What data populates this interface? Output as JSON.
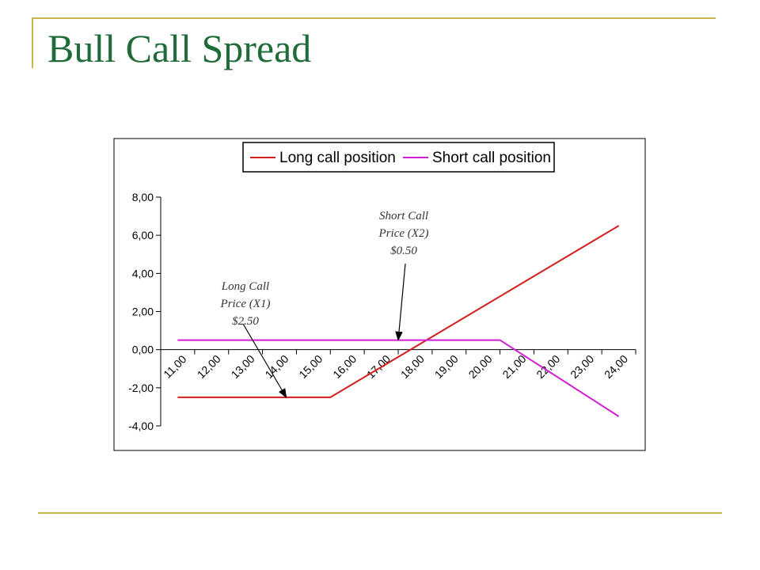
{
  "slide": {
    "title": "Bull Call Spread"
  },
  "colors": {
    "accent_line": "#c8b44a",
    "title": "#1f6b3a",
    "long": "#d41e1e",
    "short": "#d21ed2"
  },
  "chart_data": {
    "type": "line",
    "title": "",
    "xlabel": "",
    "ylabel": "",
    "x_tick_labels": [
      "11,00",
      "12,00",
      "13,00",
      "14,00",
      "15,00",
      "16,00",
      "17,00",
      "18,00",
      "19,00",
      "20,00",
      "21,00",
      "22,00",
      "23,00",
      "24,00"
    ],
    "y_tick_labels": [
      "8,00",
      "6,00",
      "4,00",
      "2,00",
      "0,00",
      "-2,00",
      "-4,00"
    ],
    "ylim": [
      -4,
      8
    ],
    "xlim": [
      10.5,
      24.5
    ],
    "grid": false,
    "legend_position": "top",
    "series": [
      {
        "name": "Long call position",
        "color": "#d41e1e",
        "x": [
          11,
          12,
          13,
          14,
          15,
          15.5,
          24
        ],
        "values": [
          -2.5,
          -2.5,
          -2.5,
          -2.5,
          -2.5,
          -2.5,
          6.5
        ]
      },
      {
        "name": "Short call position",
        "color": "#d21ed2",
        "x": [
          11,
          12,
          13,
          14,
          15,
          16,
          17,
          18,
          19,
          20,
          20.5,
          24
        ],
        "values": [
          0.5,
          0.5,
          0.5,
          0.5,
          0.5,
          0.5,
          0.5,
          0.5,
          0.5,
          0.5,
          0.5,
          -3.5
        ]
      }
    ],
    "annotations": [
      {
        "lines": [
          "Long Call",
          "Price (X1)",
          "$2.50"
        ],
        "points_to": {
          "x": 14.2,
          "y": -2.5
        }
      },
      {
        "lines": [
          "Short Call",
          "Price (X2)",
          "$0.50"
        ],
        "points_to": {
          "x": 17.5,
          "y": 0.5
        }
      }
    ]
  }
}
